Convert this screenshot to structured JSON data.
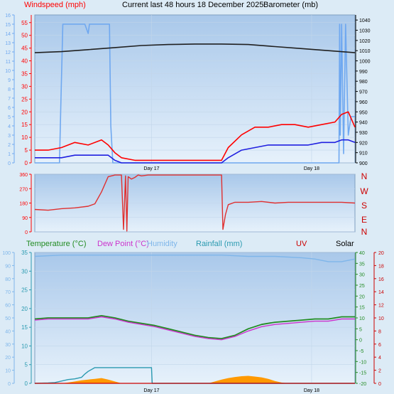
{
  "header": {
    "windspeed_label": "Windspeed (mph)",
    "title": "Current last 48 hours 18 December 2025",
    "barometer_label": "Barometer (mb)"
  },
  "legend": {
    "temperature": "Temperature (°C)",
    "dew_point": "Dew Point (°C)",
    "humidity": "Humidity",
    "rainfall": "Rainfall (mm)",
    "uv": "UV",
    "solar": "Solar"
  },
  "day_labels": [
    "Day 17",
    "Day 18"
  ],
  "compass": [
    "N",
    "W",
    "S",
    "E",
    "N"
  ],
  "colors": {
    "background": "#dcebf6",
    "plot_top": "#a9c8ea",
    "plot_bottom": "#e6f1fb",
    "wind_gust": "#ff0000",
    "wind_avg": "#2020e0",
    "barometer": "#202020",
    "bft": "#6fa8f0",
    "direction": "#e03030",
    "temperature": "#228b22",
    "dew_point": "#cc33cc",
    "humidity": "#7fb6ea",
    "rainfall": "#2a9ab0",
    "uv": "#cc0000",
    "solar": "#ff9900"
  },
  "chart_data": [
    {
      "type": "line",
      "name": "wind_barometer",
      "x_unit": "hours",
      "x_range": [
        0,
        48
      ],
      "day_ticks_hours": [
        17.5,
        41.5
      ],
      "axes": {
        "bft_left": {
          "ylim": [
            0,
            16
          ],
          "ticks": [
            0,
            1,
            2,
            3,
            4,
            5,
            6,
            7,
            8,
            9,
            10,
            11,
            12,
            13,
            14,
            15,
            16
          ]
        },
        "wind_left": {
          "ylim": [
            0,
            58
          ],
          "ticks": [
            0,
            5,
            10,
            15,
            20,
            25,
            30,
            35,
            40,
            45,
            50,
            55
          ]
        },
        "baro_right": {
          "ylim": [
            900,
            1045
          ],
          "ticks": [
            900,
            910,
            920,
            930,
            940,
            950,
            960,
            970,
            980,
            990,
            1000,
            1010,
            1020,
            1030,
            1040
          ]
        }
      },
      "series": [
        {
          "key": "barometer",
          "x": [
            0,
            4,
            8,
            12,
            16,
            20,
            24,
            28,
            32,
            36,
            40,
            44,
            48
          ],
          "y": [
            1008,
            1009,
            1011,
            1013,
            1015,
            1016,
            1016.5,
            1016.5,
            1016,
            1014,
            1012,
            1010,
            1008
          ]
        },
        {
          "key": "bft",
          "x": [
            0,
            3.7,
            3.9,
            4.2,
            7.5,
            8.0,
            8.2,
            8.5,
            11.2,
            11.4,
            11.7,
            45.6,
            45.7,
            45.8,
            46.0,
            46.3,
            46.6,
            47.0,
            47.4,
            48
          ],
          "y": [
            0,
            0,
            6,
            15,
            15,
            14,
            15,
            15,
            15,
            4,
            0,
            0,
            15,
            3,
            15,
            1,
            15,
            3,
            5,
            5
          ]
        },
        {
          "key": "wind_gust",
          "x": [
            0,
            2,
            4,
            6,
            8,
            10,
            11,
            12,
            13,
            15,
            18,
            21,
            24,
            27,
            28,
            29,
            31,
            33,
            35,
            37,
            39,
            41,
            43,
            45,
            46,
            47,
            48
          ],
          "y": [
            5,
            5,
            6,
            8,
            7,
            9,
            7,
            4,
            2,
            1,
            1,
            1,
            1,
            1,
            1,
            6,
            11,
            14,
            14,
            15,
            15,
            14,
            15,
            16,
            19,
            20,
            14
          ]
        },
        {
          "key": "wind_avg",
          "x": [
            0,
            2,
            4,
            6,
            8,
            10,
            11,
            12,
            13,
            15,
            18,
            21,
            24,
            27,
            28,
            29,
            31,
            33,
            35,
            37,
            39,
            41,
            43,
            45,
            46,
            47,
            48
          ],
          "y": [
            2,
            2,
            2,
            3,
            3,
            3,
            3,
            1,
            0,
            0,
            0,
            0,
            0,
            0,
            0,
            2,
            5,
            6,
            7,
            7,
            7,
            7,
            8,
            8,
            9,
            9,
            8
          ]
        }
      ]
    },
    {
      "type": "line",
      "name": "wind_direction",
      "x_range": [
        0,
        48
      ],
      "ylim": [
        0,
        360
      ],
      "ticks": [
        0,
        90,
        180,
        270,
        360
      ],
      "series": [
        {
          "key": "direction",
          "x": [
            0,
            2,
            4,
            6,
            8,
            9,
            10,
            11,
            11.5,
            12,
            13,
            13.3,
            13.6,
            13.8,
            14,
            14.5,
            15,
            15.5,
            16,
            17,
            19,
            21,
            24,
            26,
            28,
            28.2,
            28.6,
            29,
            30,
            32,
            34,
            36,
            38,
            40,
            42,
            44,
            46,
            48
          ],
          "y": [
            140,
            135,
            145,
            150,
            160,
            175,
            250,
            345,
            350,
            355,
            355,
            15,
            350,
            5,
            345,
            330,
            340,
            355,
            350,
            355,
            355,
            355,
            355,
            355,
            355,
            15,
            110,
            170,
            185,
            185,
            190,
            180,
            185,
            185,
            185,
            185,
            185,
            180
          ]
        }
      ]
    },
    {
      "type": "line",
      "name": "temperature_rain",
      "x_range": [
        0,
        48
      ],
      "axes": {
        "humidity_left": {
          "ylim": [
            0,
            100
          ],
          "ticks": [
            0,
            10,
            20,
            30,
            40,
            50,
            60,
            70,
            80,
            90,
            100
          ]
        },
        "rain_left": {
          "ylim": [
            0,
            35
          ],
          "ticks": [
            0,
            5,
            10,
            15,
            20,
            25,
            30,
            35
          ]
        },
        "temp_right": {
          "ylim": [
            -20,
            40
          ],
          "ticks": [
            -20,
            -15,
            -10,
            -5,
            0,
            5,
            10,
            15,
            20,
            25,
            30,
            35,
            40
          ]
        },
        "uv_right": {
          "ylim": [
            0,
            20
          ],
          "ticks": [
            0,
            2,
            4,
            6,
            8,
            10,
            12,
            14,
            16,
            18,
            20
          ]
        }
      },
      "series": [
        {
          "key": "humidity",
          "x": [
            0,
            4,
            8,
            12,
            16,
            20,
            24,
            28,
            32,
            36,
            40,
            42,
            44,
            46,
            48
          ],
          "y": [
            97,
            98,
            98,
            98,
            98,
            98,
            98,
            98,
            97,
            97,
            96,
            95,
            93,
            93,
            95
          ]
        },
        {
          "key": "temperature",
          "x": [
            0,
            2,
            4,
            6,
            8,
            10,
            12,
            14,
            16,
            18,
            20,
            22,
            24,
            26,
            28,
            30,
            32,
            34,
            36,
            38,
            40,
            42,
            44,
            46,
            48
          ],
          "y": [
            9.5,
            10,
            10,
            10,
            10,
            11,
            10,
            8.5,
            7.5,
            6.5,
            5,
            3.5,
            2,
            1,
            0.5,
            2,
            5,
            7,
            8,
            8.5,
            9,
            9.5,
            9.5,
            10.5,
            10.5
          ]
        },
        {
          "key": "dew_point",
          "x": [
            0,
            2,
            4,
            6,
            8,
            10,
            12,
            14,
            16,
            18,
            20,
            22,
            24,
            26,
            28,
            30,
            32,
            34,
            36,
            38,
            40,
            42,
            44,
            46,
            48
          ],
          "y": [
            9,
            9.5,
            9.5,
            9.5,
            9.5,
            10.5,
            9.5,
            8,
            7,
            6,
            4.5,
            3,
            1.5,
            0.5,
            0,
            1.5,
            4,
            6,
            7,
            7.5,
            8,
            8.5,
            8.5,
            9.5,
            9.5
          ]
        },
        {
          "key": "rainfall",
          "x": [
            0,
            2,
            3,
            4,
            5,
            6,
            7,
            7.5,
            8,
            9,
            10,
            11,
            12,
            13,
            14,
            15,
            16,
            17,
            17.5,
            17.6,
            48
          ],
          "y": [
            0,
            0.1,
            0.2,
            0.6,
            1,
            1.2,
            1.6,
            2.5,
            3.2,
            4.2,
            4.2,
            4.2,
            4.2,
            4.2,
            4.2,
            4.2,
            4.2,
            4.2,
            4.2,
            0,
            0
          ]
        },
        {
          "key": "solar",
          "x": [
            4,
            5,
            6,
            7,
            8,
            9,
            10,
            11,
            12,
            13,
            26,
            27,
            28,
            29,
            30,
            31,
            32,
            33,
            34,
            35,
            36,
            37,
            38
          ],
          "y": [
            0,
            0.2,
            0.5,
            0.8,
            1,
            1.2,
            1.4,
            1,
            0.5,
            0,
            0,
            0.5,
            1,
            1.4,
            1.7,
            1.9,
            2,
            1.8,
            1.6,
            1.2,
            0.6,
            0.2,
            0
          ]
        },
        {
          "key": "uv",
          "x": [
            0,
            48
          ],
          "y": [
            0,
            0
          ]
        }
      ]
    }
  ]
}
